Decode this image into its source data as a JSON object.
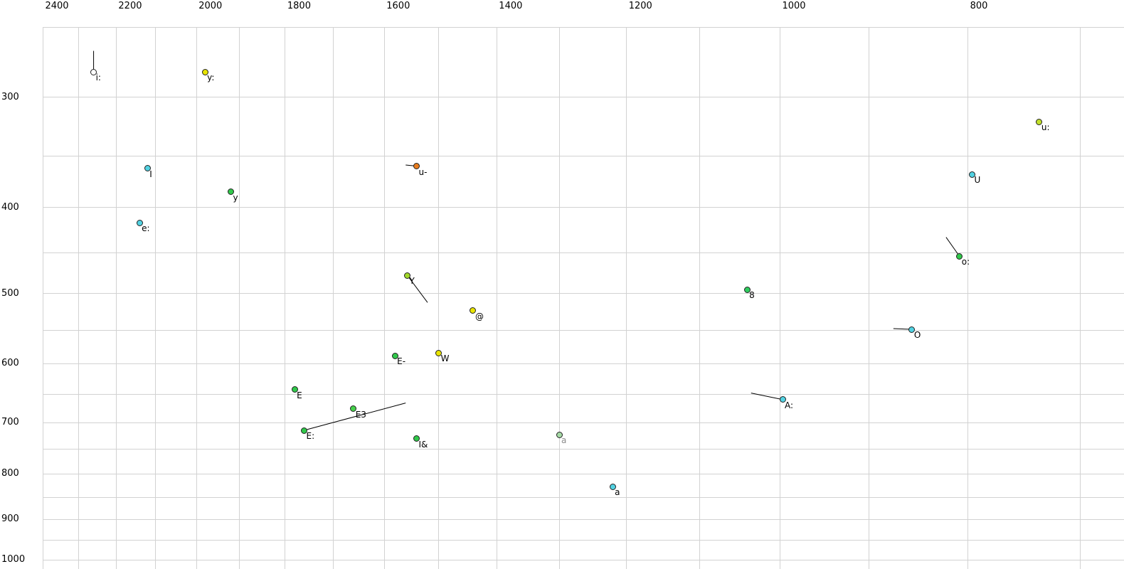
{
  "chart_data": {
    "type": "scatter",
    "title": "",
    "description": "Vowel formant chart: F2 (Hz) on reversed logarithmic x-axis, F1 (Hz) on logarithmic y-axis, labelled vowel points, some with short formant-trajectory tails",
    "colors": {
      "grid": "#d2d2d2",
      "text": "#000000",
      "trail": "#000000",
      "dot_outline": "#222222",
      "background": "#ffffff"
    },
    "x_axis": {
      "label": "",
      "scale": "log",
      "reversed": true,
      "domain": [
        2407,
        664.6
      ],
      "gridline_values": [
        2400,
        2300,
        2200,
        2100,
        2000,
        1900,
        1800,
        1700,
        1600,
        1500,
        1400,
        1300,
        1200,
        1100,
        1000,
        900,
        800,
        700
      ],
      "tick_values": [
        2400,
        2200,
        2000,
        1800,
        1600,
        1400,
        1200,
        1000,
        800
      ],
      "tick_labels": [
        "2400",
        "2200",
        "2000",
        "1800",
        "1600",
        "1400",
        "1200",
        "1000",
        "800"
      ]
    },
    "y_axis": {
      "label": "",
      "scale": "log",
      "reversed": false,
      "domain": [
        250,
        1024.3
      ],
      "gridline_values": [
        250,
        300,
        350,
        400,
        450,
        500,
        550,
        600,
        650,
        700,
        750,
        800,
        850,
        900,
        950,
        1000
      ],
      "tick_values": [
        300,
        400,
        500,
        600,
        700,
        800,
        900,
        1000
      ],
      "tick_labels": [
        "300",
        "400",
        "500",
        "600",
        "700",
        "800",
        "900",
        "1000"
      ]
    },
    "points": [
      {
        "label": "i:",
        "f2": 2260,
        "f1": 281,
        "fill": "#ffffff",
        "trail": {
          "f2": 2260,
          "f1": 266
        }
      },
      {
        "label": "y:",
        "f2": 1980,
        "f1": 281,
        "fill": "#e8e400"
      },
      {
        "label": "u:",
        "f2": 735,
        "f1": 320,
        "fill": "#c2e02a"
      },
      {
        "label": "I",
        "f2": 2120,
        "f1": 361,
        "fill": "#52d2e2"
      },
      {
        "label": "u-",
        "f2": 1540,
        "f1": 359,
        "fill": "#e87c1e",
        "trail": {
          "f2": 1560,
          "f1": 358
        }
      },
      {
        "label": "U",
        "f2": 796,
        "f1": 367,
        "fill": "#52d2e2"
      },
      {
        "label": "y",
        "f2": 1920,
        "f1": 384,
        "fill": "#30c84a"
      },
      {
        "label": "e:",
        "f2": 2140,
        "f1": 416,
        "fill": "#52d2e2"
      },
      {
        "label": "o:",
        "f2": 808,
        "f1": 454,
        "fill": "#30c84a",
        "trail": {
          "f2": 821,
          "f1": 432
        }
      },
      {
        "label": "Y",
        "f2": 1557,
        "f1": 477,
        "fill": "#a2d82a",
        "trail": {
          "f2": 1520,
          "f1": 512
        }
      },
      {
        "label": "8",
        "f2": 1040,
        "f1": 495,
        "fill": "#2ecc5e"
      },
      {
        "label": "@",
        "f2": 1440,
        "f1": 523,
        "fill": "#e8e400"
      },
      {
        "label": "O",
        "f2": 855,
        "f1": 549,
        "fill": "#52d2e2",
        "trail": {
          "f2": 874,
          "f1": 548
        }
      },
      {
        "label": "E-",
        "f2": 1580,
        "f1": 588,
        "fill": "#30c84a"
      },
      {
        "label": "W",
        "f2": 1500,
        "f1": 584,
        "fill": "#e8e400"
      },
      {
        "label": "E",
        "f2": 1780,
        "f1": 642,
        "fill": "#30c84a"
      },
      {
        "label": "A:",
        "f2": 997,
        "f1": 659,
        "fill": "#52d2e2",
        "trail": {
          "f2": 1035,
          "f1": 648
        }
      },
      {
        "label": "E3",
        "f2": 1660,
        "f1": 675,
        "fill": "#44d04a"
      },
      {
        "label": "E:",
        "f2": 1760,
        "f1": 714,
        "fill": "#30c84a",
        "trail": {
          "f2": 1560,
          "f1": 665
        }
      },
      {
        "label": "I&",
        "f2": 1540,
        "f1": 730,
        "fill": "#30c84a"
      },
      {
        "label": "a",
        "f2": 1300,
        "f1": 722,
        "fill": "#a6daa6",
        "label_color": "#8c8c8c"
      },
      {
        "label": "a",
        "f2": 1220,
        "f1": 827,
        "fill": "#52d2e2"
      }
    ]
  }
}
